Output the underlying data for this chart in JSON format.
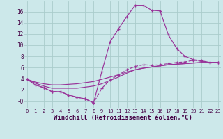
{
  "background_color": "#cce8ea",
  "grid_color": "#aacccc",
  "line_color": "#993399",
  "xlabel": "Windchill (Refroidissement éolien,°C)",
  "xlim": [
    -0.3,
    23.3
  ],
  "ylim": [
    -1.3,
    17.8
  ],
  "yticks": [
    0,
    2,
    4,
    6,
    8,
    10,
    12,
    14,
    16
  ],
  "ytick_labels": [
    "-0",
    "2",
    "4",
    "6",
    "8",
    "10",
    "12",
    "14",
    "16"
  ],
  "xticks": [
    0,
    1,
    2,
    3,
    4,
    5,
    6,
    7,
    8,
    9,
    10,
    11,
    12,
    13,
    14,
    15,
    16,
    17,
    18,
    19,
    20,
    21,
    22,
    23
  ],
  "line1_x": [
    0,
    1,
    2,
    3,
    4,
    5,
    6,
    7,
    8,
    9,
    10,
    11,
    12,
    13,
    14,
    15,
    16,
    17,
    18,
    19,
    20,
    21,
    22,
    23
  ],
  "line1_y": [
    3.9,
    2.9,
    2.4,
    1.7,
    1.7,
    1.1,
    0.7,
    0.4,
    -0.3,
    5.3,
    10.6,
    12.9,
    15.1,
    17.1,
    17.1,
    16.2,
    16.1,
    11.8,
    9.4,
    8.0,
    7.4,
    7.2,
    6.9,
    6.9
  ],
  "line2_x": [
    0,
    1,
    2,
    3,
    4,
    5,
    6,
    7,
    8,
    9,
    10,
    11,
    12,
    13,
    14,
    15,
    16,
    17,
    18,
    19,
    20,
    21,
    22,
    23
  ],
  "line2_y": [
    3.9,
    2.9,
    2.4,
    1.7,
    1.7,
    1.1,
    0.7,
    0.4,
    -0.3,
    2.3,
    3.8,
    4.7,
    5.6,
    6.2,
    6.5,
    6.4,
    6.5,
    6.7,
    6.9,
    7.0,
    7.3,
    7.1,
    6.9,
    6.9
  ],
  "line3_x": [
    0,
    1,
    2,
    3,
    4,
    5,
    6,
    7,
    8,
    9,
    10,
    11,
    12,
    13,
    14,
    15,
    16,
    17,
    18,
    19,
    20,
    21,
    22,
    23
  ],
  "line3_y": [
    3.9,
    3.2,
    2.7,
    2.3,
    2.3,
    2.3,
    2.3,
    2.5,
    2.7,
    3.1,
    3.7,
    4.3,
    5.0,
    5.6,
    5.9,
    6.1,
    6.3,
    6.5,
    6.6,
    6.7,
    6.8,
    6.9,
    6.9,
    6.9
  ],
  "line4_x": [
    0,
    1,
    2,
    3,
    4,
    5,
    6,
    7,
    8,
    9,
    10,
    11,
    12,
    13,
    14,
    15,
    16,
    17,
    18,
    19,
    20,
    21,
    22,
    23
  ],
  "line4_y": [
    3.9,
    3.4,
    3.1,
    2.9,
    2.9,
    3.0,
    3.1,
    3.3,
    3.5,
    3.9,
    4.3,
    4.7,
    5.2,
    5.6,
    5.9,
    6.1,
    6.3,
    6.5,
    6.6,
    6.7,
    6.8,
    6.9,
    6.9,
    6.9
  ]
}
